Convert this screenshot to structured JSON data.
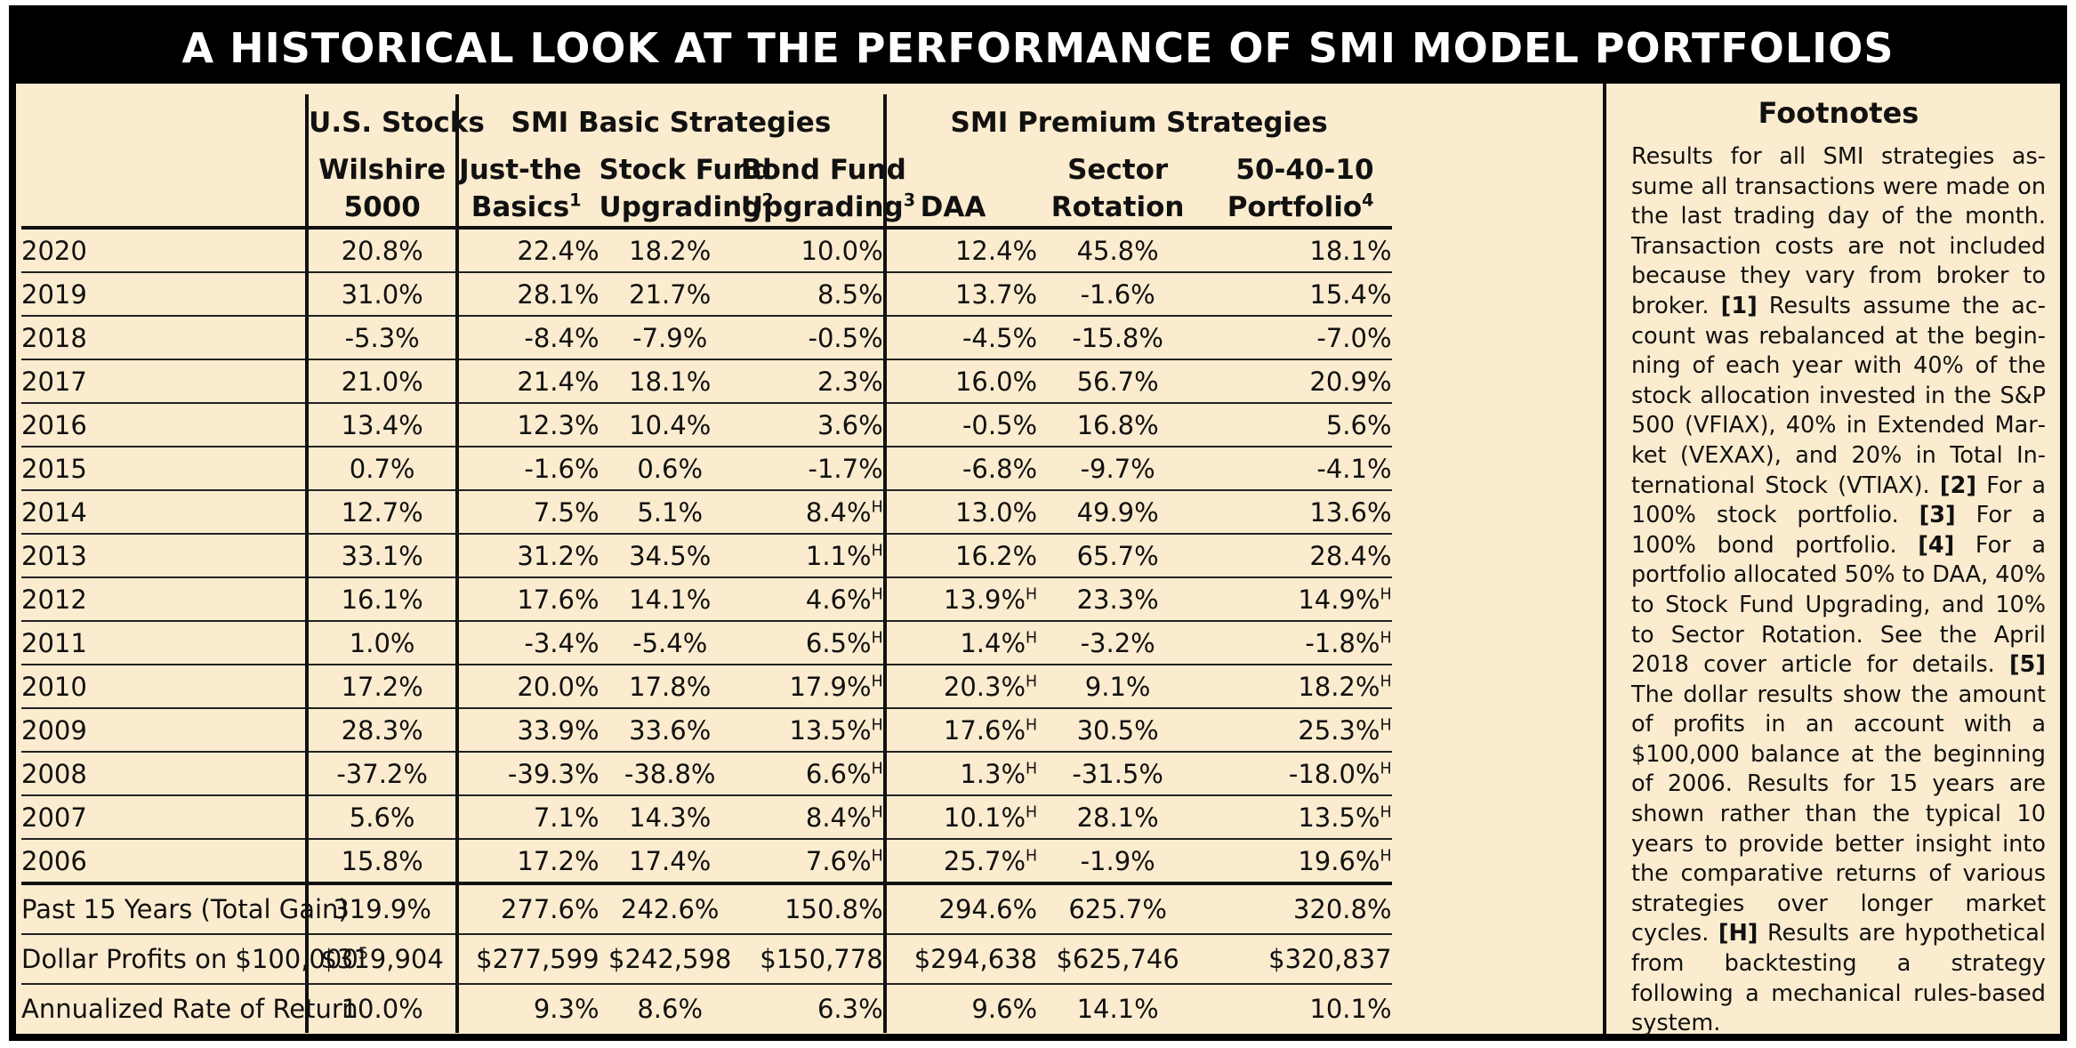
{
  "title": "A HISTORICAL LOOK AT THE PERFORMANCE OF SMI MODEL PORTFOLIOS",
  "groups": {
    "us": "U.S. Stocks",
    "basic": "SMI Basic Strategies",
    "premium": "SMI Premium Strategies"
  },
  "columns": {
    "wilshire_1": "Wilshire",
    "wilshire_2": "5000",
    "jtb_1": "Just-the",
    "jtb_2": "Basics",
    "jtb_sup": "1",
    "sfu_1": "Stock Fund",
    "sfu_2": "Upgrading",
    "sfu_sup": "2",
    "bfu_1": "Bond Fund",
    "bfu_2": "Upgrading",
    "bfu_sup": "3",
    "daa": "DAA",
    "sr_1": "Sector",
    "sr_2": "Rotation",
    "p504010_1": "50-40-10",
    "p504010_2": "Portfolio",
    "p504010_sup": "4"
  },
  "hypothetical_marker": "H",
  "rows": [
    {
      "year": "2020",
      "wilshire": "20.8%",
      "jtb": "22.4%",
      "sfu": "18.2%",
      "bfu": "10.0%",
      "bfu_h": "",
      "daa": "12.4%",
      "daa_h": "",
      "sr": "45.8%",
      "p": "18.1%",
      "p_h": ""
    },
    {
      "year": "2019",
      "wilshire": "31.0%",
      "jtb": "28.1%",
      "sfu": "21.7%",
      "bfu": "8.5%",
      "bfu_h": "",
      "daa": "13.7%",
      "daa_h": "",
      "sr": "-1.6%",
      "p": "15.4%",
      "p_h": ""
    },
    {
      "year": "2018",
      "wilshire": "-5.3%",
      "jtb": "-8.4%",
      "sfu": "-7.9%",
      "bfu": "-0.5%",
      "bfu_h": "",
      "daa": "-4.5%",
      "daa_h": "",
      "sr": "-15.8%",
      "p": "-7.0%",
      "p_h": ""
    },
    {
      "year": "2017",
      "wilshire": "21.0%",
      "jtb": "21.4%",
      "sfu": "18.1%",
      "bfu": "2.3%",
      "bfu_h": "",
      "daa": "16.0%",
      "daa_h": "",
      "sr": "56.7%",
      "p": "20.9%",
      "p_h": ""
    },
    {
      "year": "2016",
      "wilshire": "13.4%",
      "jtb": "12.3%",
      "sfu": "10.4%",
      "bfu": "3.6%",
      "bfu_h": "",
      "daa": "-0.5%",
      "daa_h": "",
      "sr": "16.8%",
      "p": "5.6%",
      "p_h": ""
    },
    {
      "year": "2015",
      "wilshire": "0.7%",
      "jtb": "-1.6%",
      "sfu": "0.6%",
      "bfu": "-1.7%",
      "bfu_h": "",
      "daa": "-6.8%",
      "daa_h": "",
      "sr": "-9.7%",
      "p": "-4.1%",
      "p_h": ""
    },
    {
      "year": "2014",
      "wilshire": "12.7%",
      "jtb": "7.5%",
      "sfu": "5.1%",
      "bfu": "8.4%",
      "bfu_h": "H",
      "daa": "13.0%",
      "daa_h": "",
      "sr": "49.9%",
      "p": "13.6%",
      "p_h": ""
    },
    {
      "year": "2013",
      "wilshire": "33.1%",
      "jtb": "31.2%",
      "sfu": "34.5%",
      "bfu": "1.1%",
      "bfu_h": "H",
      "daa": "16.2%",
      "daa_h": "",
      "sr": "65.7%",
      "p": "28.4%",
      "p_h": ""
    },
    {
      "year": "2012",
      "wilshire": "16.1%",
      "jtb": "17.6%",
      "sfu": "14.1%",
      "bfu": "4.6%",
      "bfu_h": "H",
      "daa": "13.9%",
      "daa_h": "H",
      "sr": "23.3%",
      "p": "14.9%",
      "p_h": "H"
    },
    {
      "year": "2011",
      "wilshire": "1.0%",
      "jtb": "-3.4%",
      "sfu": "-5.4%",
      "bfu": "6.5%",
      "bfu_h": "H",
      "daa": "1.4%",
      "daa_h": "H",
      "sr": "-3.2%",
      "p": "-1.8%",
      "p_h": "H"
    },
    {
      "year": "2010",
      "wilshire": "17.2%",
      "jtb": "20.0%",
      "sfu": "17.8%",
      "bfu": "17.9%",
      "bfu_h": "H",
      "daa": "20.3%",
      "daa_h": "H",
      "sr": "9.1%",
      "p": "18.2%",
      "p_h": "H"
    },
    {
      "year": "2009",
      "wilshire": "28.3%",
      "jtb": "33.9%",
      "sfu": "33.6%",
      "bfu": "13.5%",
      "bfu_h": "H",
      "daa": "17.6%",
      "daa_h": "H",
      "sr": "30.5%",
      "p": "25.3%",
      "p_h": "H"
    },
    {
      "year": "2008",
      "wilshire": "-37.2%",
      "jtb": "-39.3%",
      "sfu": "-38.8%",
      "bfu": "6.6%",
      "bfu_h": "H",
      "daa": "1.3%",
      "daa_h": "H",
      "sr": "-31.5%",
      "p": "-18.0%",
      "p_h": "H"
    },
    {
      "year": "2007",
      "wilshire": "5.6%",
      "jtb": "7.1%",
      "sfu": "14.3%",
      "bfu": "8.4%",
      "bfu_h": "H",
      "daa": "10.1%",
      "daa_h": "H",
      "sr": "28.1%",
      "p": "13.5%",
      "p_h": "H"
    },
    {
      "year": "2006",
      "wilshire": "15.8%",
      "jtb": "17.2%",
      "sfu": "17.4%",
      "bfu": "7.6%",
      "bfu_h": "H",
      "daa": "25.7%",
      "daa_h": "H",
      "sr": "-1.9%",
      "p": "19.6%",
      "p_h": "H"
    }
  ],
  "summary": [
    {
      "label": "Past 15 Years (Total Gain)",
      "label_sup": "",
      "wilshire": "319.9%",
      "jtb": "277.6%",
      "sfu": "242.6%",
      "bfu": "150.8%",
      "daa": "294.6%",
      "sr": "625.7%",
      "p": "320.8%"
    },
    {
      "label": "Dollar Profits on $100,000",
      "label_sup": "5",
      "wilshire": "$319,904",
      "jtb": "$277,599",
      "sfu": "$242,598",
      "bfu": "$150,778",
      "daa": "$294,638",
      "sr": "$625,746",
      "p": "$320,837"
    },
    {
      "label": "Annualized Rate of Return",
      "label_sup": "",
      "wilshire": "10.0%",
      "jtb": "9.3%",
      "sfu": "8.6%",
      "bfu": "6.3%",
      "daa": "9.6%",
      "sr": "14.1%",
      "p": "10.1%"
    }
  ],
  "footnotes": {
    "title": "Footnotes",
    "parts": [
      {
        "bold": false,
        "text": "Results for all SMI strategies as­sume all transactions were made on the last trading day of the month. Transaction costs are not included because they vary from broker to broker. "
      },
      {
        "bold": true,
        "text": "[1]"
      },
      {
        "bold": false,
        "text": " Results assume the ac­count was rebalanced at the begin­ning of each year with 40% of the stock allocation invested in the S&P 500 (VFIAX), 40% in Extended Mar­ket (VEXAX), and 20% in Total In­ternational Stock (VTIAX). "
      },
      {
        "bold": true,
        "text": "[2]"
      },
      {
        "bold": false,
        "text": " For a 100% stock portfolio. "
      },
      {
        "bold": true,
        "text": "[3]"
      },
      {
        "bold": false,
        "text": " For a 100% bond portfolio. "
      },
      {
        "bold": true,
        "text": "[4]"
      },
      {
        "bold": false,
        "text": " For a portfolio allocated 50% to DAA, 40% to Stock Fund Upgrading, and 10% to Sector Rotation. See the April 2018 cover article for details. "
      },
      {
        "bold": true,
        "text": "[5]"
      },
      {
        "bold": false,
        "text": " The dollar results show the amount of prof­its in an account with a $100,000 balance at the beginning of 2006. Results for 15 years are shown rather than the typical 10 years to provide better insight into the com­parative returns of various strat­egies over longer market cycles. "
      },
      {
        "bold": true,
        "text": "[H]"
      },
      {
        "bold": false,
        "text": " Results are hypothetical from backtesting a strategy following a mechanical rules-based system."
      }
    ]
  },
  "colors": {
    "background": "#fceccf",
    "frame": "#000000",
    "title_text": "#ffffff"
  }
}
